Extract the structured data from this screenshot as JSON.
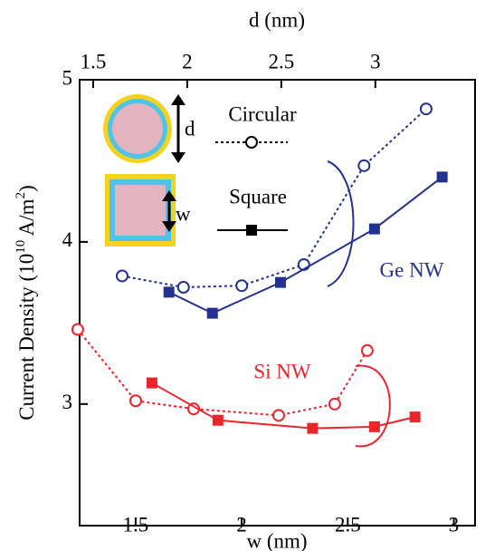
{
  "chart_data": {
    "type": "line",
    "xlabel": "w (nm)",
    "x2label": "d (nm)",
    "ylabel": [
      "Current Density (10",
      "10",
      " A/m",
      "2",
      ")"
    ],
    "xlim": [
      1.236,
      3.1
    ],
    "xticks": [
      1.5,
      2,
      2.5,
      3
    ],
    "x2lim": [
      1.428,
      3.53
    ],
    "x2ticks": [
      1.5,
      2,
      2.5,
      3
    ],
    "ylim": [
      2.25,
      5
    ],
    "yticks": [
      3,
      4,
      5
    ],
    "legend": [
      "Circular",
      "Square"
    ],
    "inset_labels": [
      "d",
      "w"
    ],
    "annotations": [
      "Ge NW",
      "Si NW"
    ],
    "series": [
      {
        "marker": "circle",
        "axis": "x2",
        "color": "#23318f",
        "x": [
          1.654,
          1.98,
          2.29,
          2.62,
          2.94,
          3.27
        ],
        "values": [
          3.79,
          3.72,
          3.73,
          3.86,
          4.47,
          4.82
        ]
      },
      {
        "marker": "square",
        "axis": "x",
        "color": "#23318f",
        "x": [
          1.657,
          1.862,
          2.183,
          2.626,
          2.945
        ],
        "values": [
          3.69,
          3.56,
          3.75,
          4.08,
          4.4
        ]
      },
      {
        "marker": "circle",
        "axis": "x2",
        "color": "#e8262b",
        "x": [
          1.418,
          1.726,
          2.034,
          2.486,
          2.784,
          2.957
        ],
        "values": [
          3.46,
          3.02,
          2.97,
          2.93,
          3.0,
          3.33
        ]
      },
      {
        "marker": "square",
        "axis": "x",
        "color": "#e8262b",
        "x": [
          1.577,
          1.888,
          2.334,
          2.626,
          2.817
        ],
        "values": [
          3.13,
          2.9,
          2.85,
          2.86,
          2.92
        ]
      }
    ]
  }
}
